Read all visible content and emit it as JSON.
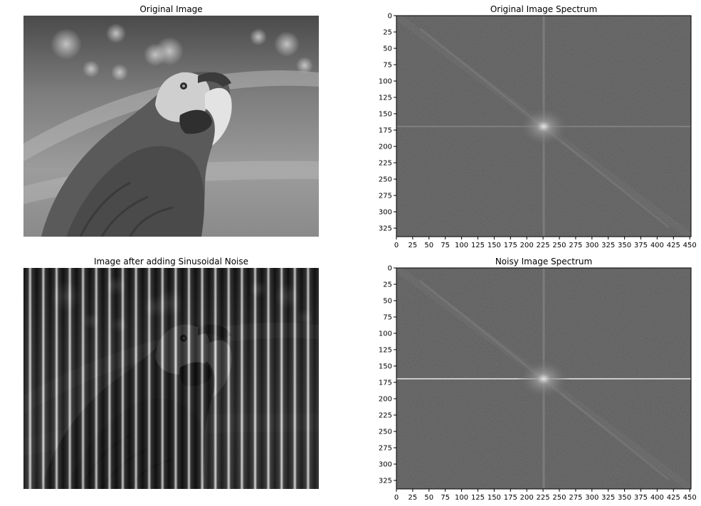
{
  "figure": {
    "panels": [
      {
        "id": "original-image",
        "title": "Original Image"
      },
      {
        "id": "original-spectrum",
        "title": "Original Image Spectrum"
      },
      {
        "id": "noisy-image",
        "title": "Image after adding Sinusoidal Noise"
      },
      {
        "id": "noisy-spectrum",
        "title": "Noisy Image Spectrum"
      }
    ]
  },
  "chart_data": [
    {
      "type": "heatmap",
      "title": "Original Image",
      "content": "grayscale photograph of a macaw (parrot) facing right",
      "axes_visible": false,
      "colormap": "gray"
    },
    {
      "type": "heatmap",
      "title": "Original Image Spectrum",
      "content": "log-magnitude Fourier spectrum, bright center near (226, 170)",
      "colormap": "gray",
      "xlim": [
        0,
        452
      ],
      "ylim": [
        338,
        0
      ],
      "x_ticks": [
        0,
        25,
        50,
        75,
        100,
        125,
        150,
        175,
        200,
        225,
        250,
        275,
        300,
        325,
        350,
        375,
        400,
        425,
        450
      ],
      "y_ticks": [
        0,
        25,
        50,
        75,
        100,
        125,
        150,
        175,
        200,
        225,
        250,
        275,
        300,
        325
      ],
      "center": [
        226,
        170
      ]
    },
    {
      "type": "heatmap",
      "title": "Image after adding Sinusoidal Noise",
      "content": "parrot image overlaid with vertical sinusoidal stripes",
      "axes_visible": false,
      "colormap": "gray",
      "stripe_period_px": 18.6
    },
    {
      "type": "heatmap",
      "title": "Noisy Image Spectrum",
      "content": "log-magnitude Fourier spectrum with bright horizontal line through center (noise peaks)",
      "colormap": "gray",
      "xlim": [
        0,
        452
      ],
      "ylim": [
        338,
        0
      ],
      "x_ticks": [
        0,
        25,
        50,
        75,
        100,
        125,
        150,
        175,
        200,
        225,
        250,
        275,
        300,
        325,
        350,
        375,
        400,
        425,
        450
      ],
      "y_ticks": [
        0,
        25,
        50,
        75,
        100,
        125,
        150,
        175,
        200,
        225,
        250,
        275,
        300,
        325
      ],
      "center": [
        226,
        170
      ]
    }
  ]
}
